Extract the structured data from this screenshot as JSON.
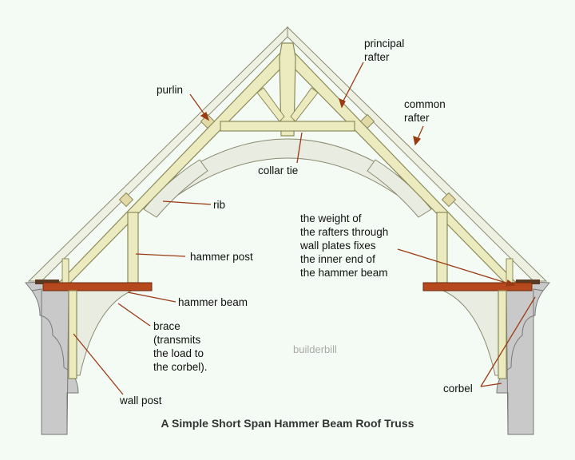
{
  "labels": {
    "principal_rafter": "principal\nrafter",
    "purlin": "purlin",
    "common_rafter": "common\nrafter",
    "collar_tie": "collar tie",
    "rib": "rib",
    "hammer_post": "hammer post",
    "hammer_beam": "hammer beam",
    "brace": "brace\n(transmits\nthe load to\nthe corbel).",
    "wall_post": "wall post",
    "corbel": "corbel",
    "weight_note": "the weight of\nthe rafters through\nwall plates fixes\nthe inner end of\nthe hammer beam"
  },
  "watermark": "builderbill",
  "caption": "A Simple Short Span Hammer Beam Roof Truss",
  "colors": {
    "background": "#f4fbf4",
    "timber": "#ecebbf",
    "timber_outline": "#8b8b5a",
    "rib": "#e9ece0",
    "wall": "#c9c9c9",
    "hammer_beam": "#b5481c",
    "leader": "#9a3a14"
  }
}
